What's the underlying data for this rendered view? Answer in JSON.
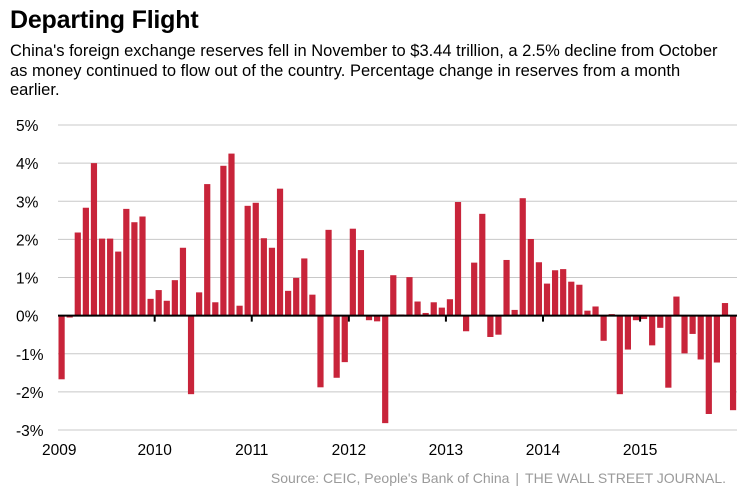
{
  "title": "Departing Flight",
  "subtitle": "China's foreign exchange reserves fell in November to $3.44 trillion, a 2.5% decline from October as money continued to flow out of the country. Percentage change in reserves from a month earlier.",
  "source": {
    "text": "Source: CEIC, People's Bank of China",
    "separator": "|",
    "publisher": "THE WALL STREET JOURNAL."
  },
  "colors": {
    "bar": "#c8243a",
    "grid": "#c8c8c8",
    "zero_line": "#000000",
    "source": "#9a9a9a"
  },
  "chart_data": {
    "type": "bar",
    "title": "Departing Flight",
    "xlabel": "",
    "ylabel": "Percentage change in reserves from a month earlier",
    "ylim": [
      -3,
      5
    ],
    "yticks": [
      5,
      4,
      3,
      2,
      1,
      0,
      -1,
      -2,
      -3
    ],
    "ytick_labels": [
      "5%",
      "4%",
      "3%",
      "2%",
      "1%",
      "0%",
      "-1%",
      "-2%",
      "-3%"
    ],
    "xtick_labels": [
      "2009",
      "2010",
      "2011",
      "2012",
      "2013",
      "2014",
      "2015"
    ],
    "grid": true,
    "start": "2009-01",
    "end": "2015-11",
    "values": [
      -1.67,
      -0.05,
      2.18,
      2.83,
      4.0,
      2.02,
      2.02,
      1.68,
      2.8,
      2.45,
      2.6,
      0.44,
      0.67,
      0.39,
      0.93,
      1.78,
      -2.06,
      0.61,
      3.45,
      0.35,
      3.93,
      4.25,
      0.26,
      2.88,
      2.96,
      2.03,
      1.78,
      3.33,
      0.65,
      0.99,
      1.5,
      0.55,
      -1.88,
      2.25,
      -1.63,
      -1.22,
      2.28,
      1.72,
      -0.12,
      -0.15,
      -2.82,
      1.06,
      0.03,
      1.01,
      0.37,
      0.07,
      0.35,
      0.21,
      0.43,
      2.98,
      -0.41,
      1.39,
      2.67,
      -0.56,
      -0.5,
      1.46,
      0.15,
      3.08,
      2.01,
      1.4,
      0.84,
      1.19,
      1.22,
      0.89,
      0.81,
      0.13,
      0.24,
      -0.66,
      0.04,
      -2.06,
      -0.89,
      -0.12,
      -0.09,
      -0.78,
      -0.32,
      -1.89,
      0.5,
      -0.99,
      -0.48,
      -1.15,
      -2.58,
      -1.23,
      0.33,
      -2.48
    ]
  }
}
